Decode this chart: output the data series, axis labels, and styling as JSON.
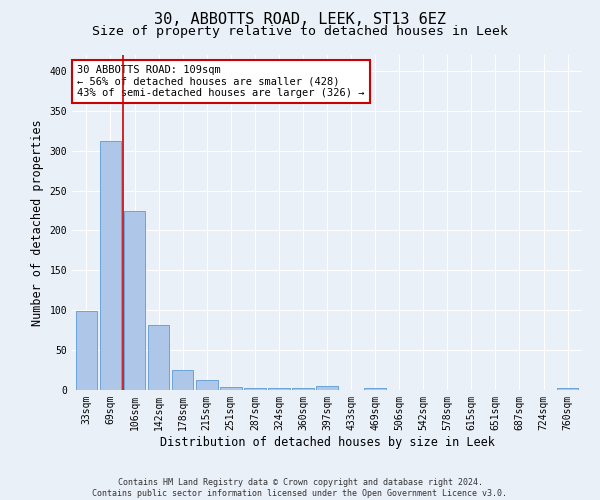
{
  "title": "30, ABBOTTS ROAD, LEEK, ST13 6EZ",
  "subtitle": "Size of property relative to detached houses in Leek",
  "xlabel": "Distribution of detached houses by size in Leek",
  "ylabel": "Number of detached properties",
  "categories": [
    "33sqm",
    "69sqm",
    "106sqm",
    "142sqm",
    "178sqm",
    "215sqm",
    "251sqm",
    "287sqm",
    "324sqm",
    "360sqm",
    "397sqm",
    "433sqm",
    "469sqm",
    "506sqm",
    "542sqm",
    "578sqm",
    "615sqm",
    "651sqm",
    "687sqm",
    "724sqm",
    "760sqm"
  ],
  "values": [
    99,
    312,
    224,
    81,
    25,
    12,
    4,
    3,
    3,
    3,
    5,
    0,
    3,
    0,
    0,
    0,
    0,
    0,
    0,
    0,
    2
  ],
  "bar_color": "#aec6e8",
  "bar_edge_color": "#5b9bd5",
  "vline_x": 1.5,
  "vline_color": "#cc0000",
  "annotation_line1": "30 ABBOTTS ROAD: 109sqm",
  "annotation_line2": "← 56% of detached houses are smaller (428)",
  "annotation_line3": "43% of semi-detached houses are larger (326) →",
  "annotation_box_color": "#cc0000",
  "ylim": [
    0,
    420
  ],
  "yticks": [
    0,
    50,
    100,
    150,
    200,
    250,
    300,
    350,
    400
  ],
  "footer_line1": "Contains HM Land Registry data © Crown copyright and database right 2024.",
  "footer_line2": "Contains public sector information licensed under the Open Government Licence v3.0.",
  "background_color": "#eaf0f8",
  "plot_bg_color": "#eaf0f8",
  "title_fontsize": 11,
  "subtitle_fontsize": 9.5,
  "tick_fontsize": 7,
  "ylabel_fontsize": 8.5,
  "xlabel_fontsize": 8.5,
  "footer_fontsize": 6,
  "annot_fontsize": 7.5
}
